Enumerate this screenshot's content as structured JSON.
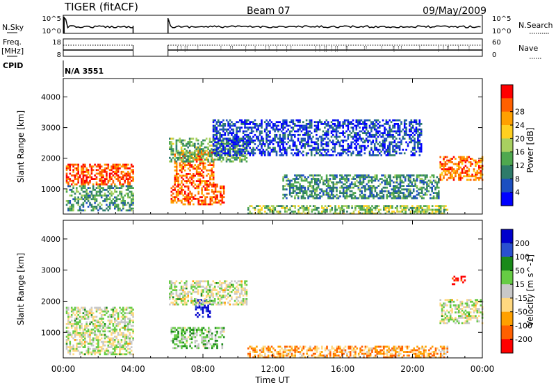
{
  "header": {
    "radar": "TIGER (fitACF)",
    "beam": "Beam 07",
    "date": "09/May/2009"
  },
  "noise_panel": {
    "left_label": "N.Sky",
    "right_label": "N.Search",
    "left_ticks": [
      "10^5",
      "10^0"
    ],
    "right_ticks": [
      "10^5",
      "10^0"
    ]
  },
  "freq_panel": {
    "left_label_1": "Freq.",
    "left_label_2": "[MHz]",
    "right_label": "Nave",
    "left_ticks": [
      "18",
      "8"
    ],
    "right_ticks": [
      "60",
      "0"
    ]
  },
  "cpid": {
    "label": "CPID",
    "value": "N/A 3551"
  },
  "x_axis": {
    "label": "Time UT",
    "ticks": [
      "00:00",
      "04:00",
      "08:00",
      "12:00",
      "16:00",
      "20:00",
      "00:00"
    ],
    "range_hours": [
      0,
      24
    ]
  },
  "colors": {
    "power": [
      "#0000ff",
      "#1c4fc0",
      "#2e7b6a",
      "#4fa84f",
      "#a8d060",
      "#ffd020",
      "#ffa000",
      "#ff6000",
      "#ff0000"
    ],
    "velocity": [
      "#ff0000",
      "#ff6000",
      "#ffa000",
      "#ffd880",
      "#c8c8c8",
      "#66cc44",
      "#1a8a1a",
      "#2a50d0",
      "#0000cc"
    ]
  },
  "chart_data": [
    {
      "type": "heatmap",
      "ylabel": "Slant Range [km]",
      "yticks": [
        1000,
        2000,
        3000,
        4000
      ],
      "ylim": [
        180,
        4600
      ],
      "xlim": [
        0,
        24
      ],
      "colorbar": {
        "label": "Power [dB]",
        "ticks": [
          "4",
          "8",
          "12",
          "16",
          "20",
          "24",
          "28"
        ]
      },
      "data_gaps_hours": [
        [
          4.05,
          5.95
        ]
      ],
      "scatter_regions": [
        {
          "x": [
            0.1,
            4.0
          ],
          "y": [
            1150,
            1850
          ],
          "level": 0.85
        },
        {
          "x": [
            0.1,
            4.0
          ],
          "y": [
            300,
            1150
          ],
          "level": 0.35
        },
        {
          "x": [
            6.1,
            9.2
          ],
          "y": [
            500,
            1200
          ],
          "level": 0.85
        },
        {
          "x": [
            6.3,
            8.6
          ],
          "y": [
            1200,
            2300
          ],
          "level": 0.8
        },
        {
          "x": [
            6.0,
            10.5
          ],
          "y": [
            1900,
            2700
          ],
          "level": 0.4
        },
        {
          "x": [
            10.5,
            22.0
          ],
          "y": [
            200,
            500
          ],
          "level": 0.45
        },
        {
          "x": [
            21.5,
            24.0
          ],
          "y": [
            1300,
            2100
          ],
          "level": 0.8
        },
        {
          "x": [
            8.5,
            20.5
          ],
          "y": [
            2100,
            3300
          ],
          "level": 0.15
        },
        {
          "x": [
            12.5,
            21.5
          ],
          "y": [
            700,
            1500
          ],
          "level": 0.3
        }
      ]
    },
    {
      "type": "heatmap",
      "ylabel": "Slant Range [km]",
      "yticks": [
        1000,
        2000,
        3000,
        4000
      ],
      "ylim": [
        180,
        4600
      ],
      "xlim": [
        0,
        24
      ],
      "colorbar": {
        "label": "Velocity [m s^-1]",
        "ticks": [
          "200",
          "100",
          "50",
          "15",
          "-15",
          "-50",
          "-100",
          "-200"
        ]
      },
      "data_gaps_hours": [
        [
          4.05,
          5.95
        ]
      ],
      "scatter_regions": [
        {
          "x": [
            0.1,
            4.0
          ],
          "y": [
            1150,
            1850
          ],
          "level": 0.5
        },
        {
          "x": [
            0.1,
            4.0
          ],
          "y": [
            300,
            1150
          ],
          "level": 0.5
        },
        {
          "x": [
            6.1,
            9.2
          ],
          "y": [
            500,
            1200
          ],
          "level": 0.6
        },
        {
          "x": [
            7.5,
            8.4
          ],
          "y": [
            1500,
            2100
          ],
          "level": 0.92
        },
        {
          "x": [
            6.0,
            10.5
          ],
          "y": [
            1900,
            2700
          ],
          "level": 0.5
        },
        {
          "x": [
            10.5,
            22.0
          ],
          "y": [
            200,
            600
          ],
          "level": 0.3
        },
        {
          "x": [
            21.5,
            24.0
          ],
          "y": [
            1300,
            2100
          ],
          "level": 0.5
        },
        {
          "x": [
            22.2,
            23.0
          ],
          "y": [
            2550,
            2850
          ],
          "level": 0.05
        }
      ]
    }
  ]
}
